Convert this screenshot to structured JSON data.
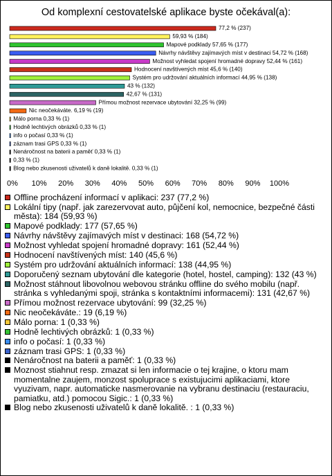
{
  "chart_data": {
    "type": "bar",
    "orientation": "horizontal",
    "title": "Od komplexní cestovatelské aplikace byste očekával(a):",
    "categories": [
      "Offline procházení informací v aplikaci",
      "Lokální tipy",
      "Mapové podklady",
      "Návrhy návštěvy zajímavých míst v destinaci",
      "Možnost vyhledat spojení hromadné dopravy",
      "Hodnocení navštívených míst",
      "Systém pro udržování aktuálních informací",
      "Doporučený seznam ubytování",
      "Možnost stáhnout libovolnou webovou stránku",
      "Přímou možnost rezervace ubytování",
      "Nic neočekáváte.",
      "Málo porna",
      "Hodně lechtivých obrázků",
      "info o počasí",
      "záznam trasi GPS",
      "Nenáročnost na baterii a paměť",
      "Moznost stiahnut",
      "Blog nebo zkusenosti uživatelů"
    ],
    "values": [
      77.2,
      59.93,
      57.65,
      54.72,
      52.44,
      45.6,
      44.95,
      43,
      42.67,
      32.25,
      6.19,
      0.33,
      0.33,
      0.33,
      0.33,
      0.33,
      0.33,
      0.33
    ],
    "value_labels": [
      "77,2 % (237)",
      "59,93 % (184)",
      "Mapové podklady 57,65 % (177)",
      "Návrhy návštěvy zajímavých míst v destinaci 54,72 % (168)",
      "Možnost vyhledat spojení hromadné dopravy 52,44 % (161)",
      "Hodnocení navštívených míst 45,6 % (140)",
      "Systém pro udržování aktuálních informací 44,95 % (138)",
      "43 % (132)",
      "42,67 % (131)",
      "Přímou možnost rezervace ubytování 32,25 % (99)",
      "Nic neočekáváte. 6,19 % (19)",
      "Málo porna 0,33 % (1)",
      "Hodně lechtivých obrázků 0,33 % (1)",
      "info o počasí 0,33 % (1)",
      "záznam trasi GPS 0,33 % (1)",
      "Nenáročnost na baterii a paměť 0,33 % (1)",
      "0,33 % (1)",
      "Blog nebo zkusenosti uživatelů k daně lokalitě.  0,33 % (1)"
    ],
    "legend_labels": [
      "Offline procházení informací v aplikaci: 237 (77,2 %)",
      "Lokální tipy (např. jak zarezervovat auto, půjčení kol, nemocnice, bezpečné části města): 184 (59,93 %)",
      "Mapové podklady: 177 (57,65 %)",
      "Návrhy návštěvy zajímavých míst v destinaci: 168 (54,72 %)",
      "Možnost vyhledat spojení hromadné dopravy: 161 (52,44 %)",
      "Hodnocení navštívených míst: 140 (45,6 %)",
      "Systém pro udržování aktuálních informací: 138 (44,95 %)",
      "Doporučený seznam ubytování dle kategorie (hotel, hostel, camping): 132 (43 %)",
      "Možnost stáhnout libovolnou webovou stránku offline do svého mobilu (např. stránka s vyhledanými spoji, stránka s kontaktními informacemi): 131 (42,67 %)",
      "Přímou možnost rezervace ubytování: 99 (32,25 %)",
      "Nic neočekáváte.: 19 (6,19 %)",
      "Málo porna: 1 (0,33 %)",
      "Hodně lechtivých obrázků: 1 (0,33 %)",
      "info o počasí: 1 (0,33 %)",
      "záznam trasi GPS: 1 (0,33 %)",
      "Nenáročnost na baterii a paměť: 1 (0,33 %)",
      "Moznost stiahnut resp. zmazat si len informacie o tej krajine, o ktoru mam momentalne zaujem, monzost spoluprace s existujucimi aplikaciami, ktore vyuzivam, napr. automaticke nasmerovanie na vybranu destinaciu (restauraciu, pamiatku, atd.) pomocou Sigic.: 1 (0,33 %)",
      "Blog nebo zkusenosti uživatelů k daně lokalitě. : 1 (0,33 %)"
    ],
    "colors": [
      "#cc2a1e",
      "#fff35c",
      "#2fc42f",
      "#3a5cf0",
      "#c83ac8",
      "#c8331a",
      "#9ef03a",
      "#2f9a96",
      "#2c6464",
      "#c86ac8",
      "#f26a14",
      "#f5c838",
      "#34c234",
      "#3a8cf0",
      "#3a62cc",
      "#000000",
      "#000000",
      "#000000"
    ],
    "xlim": [
      0,
      100
    ],
    "xticks": [
      {
        "value": 0,
        "label": "0%"
      },
      {
        "value": 10,
        "label": "10%"
      },
      {
        "value": 20,
        "label": "20%"
      },
      {
        "value": 30,
        "label": "30%"
      },
      {
        "value": 40,
        "label": "40%"
      },
      {
        "value": 50,
        "label": "50%"
      },
      {
        "value": 60,
        "label": "60%"
      },
      {
        "value": 70,
        "label": "70%"
      },
      {
        "value": 80,
        "label": "80%"
      },
      {
        "value": 90,
        "label": "90%"
      },
      {
        "value": 100,
        "label": "100%"
      }
    ],
    "grid": false
  }
}
